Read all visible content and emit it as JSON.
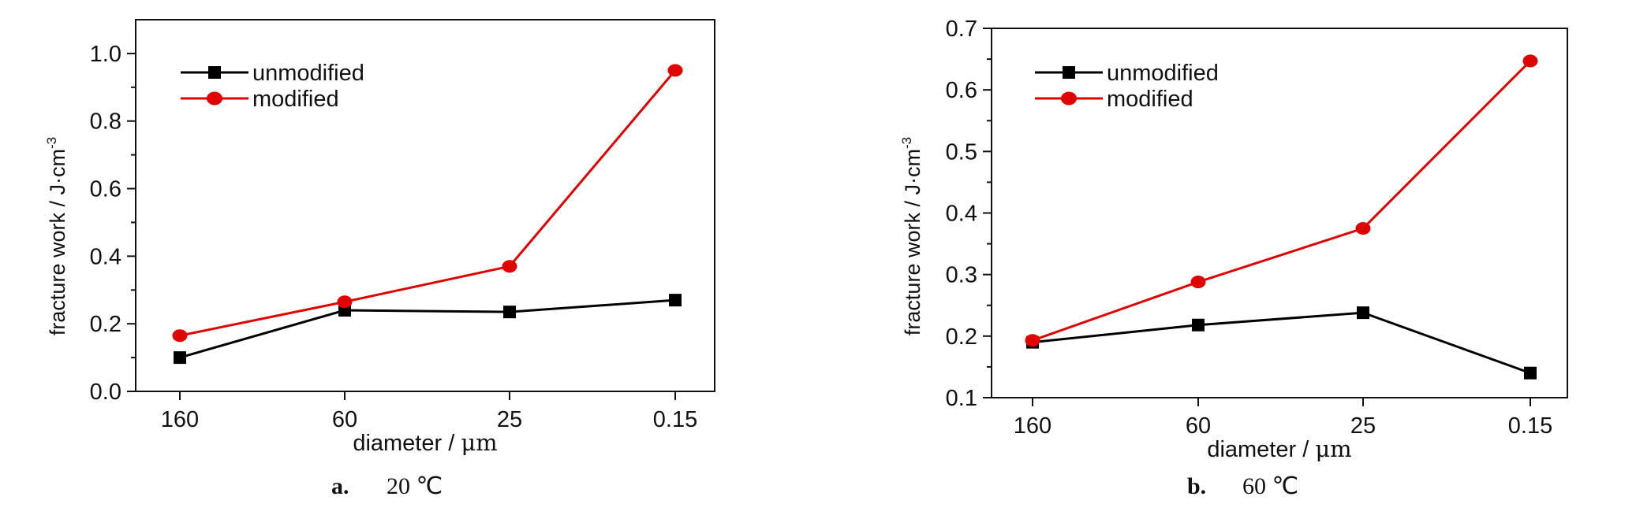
{
  "chart_data": [
    {
      "type": "line",
      "caption_letter": "a.",
      "caption_text": "20 ℃",
      "xlabel_prefix": "diameter / ",
      "xlabel_unit": "μm",
      "ylabel_main": "fracture work / J·cm",
      "ylabel_sup": "-3",
      "categories": [
        "160",
        "60",
        "25",
        "0.15"
      ],
      "ylim": [
        0.0,
        1.1
      ],
      "yticks": [
        "0.0",
        "0.2",
        "0.4",
        "0.6",
        "0.8",
        "1.0"
      ],
      "ytick_values": [
        0.0,
        0.2,
        0.4,
        0.6,
        0.8,
        1.0
      ],
      "legend_position": "top-left",
      "series": [
        {
          "name": "unmodified",
          "values": [
            0.1,
            0.24,
            0.235,
            0.27
          ],
          "color": "#000000",
          "marker": "square"
        },
        {
          "name": "modified",
          "values": [
            0.165,
            0.265,
            0.37,
            0.95
          ],
          "color": "#e00000",
          "marker": "circle"
        }
      ]
    },
    {
      "type": "line",
      "caption_letter": "b.",
      "caption_text": "60 ℃",
      "xlabel_prefix": "diameter / ",
      "xlabel_unit": "μm",
      "ylabel_main": "fracture work / J·cm",
      "ylabel_sup": "-3",
      "categories": [
        "160",
        "60",
        "25",
        "0.15"
      ],
      "ylim": [
        0.1,
        0.7
      ],
      "yticks": [
        "0.1",
        "0.2",
        "0.3",
        "0.4",
        "0.5",
        "0.6",
        "0.7"
      ],
      "ytick_values": [
        0.1,
        0.2,
        0.3,
        0.4,
        0.5,
        0.6,
        0.7
      ],
      "legend_position": "top-left",
      "series": [
        {
          "name": "unmodified",
          "values": [
            0.19,
            0.218,
            0.238,
            0.14
          ],
          "color": "#000000",
          "marker": "square"
        },
        {
          "name": "modified",
          "values": [
            0.193,
            0.288,
            0.375,
            0.647
          ],
          "color": "#e00000",
          "marker": "circle"
        }
      ]
    }
  ]
}
